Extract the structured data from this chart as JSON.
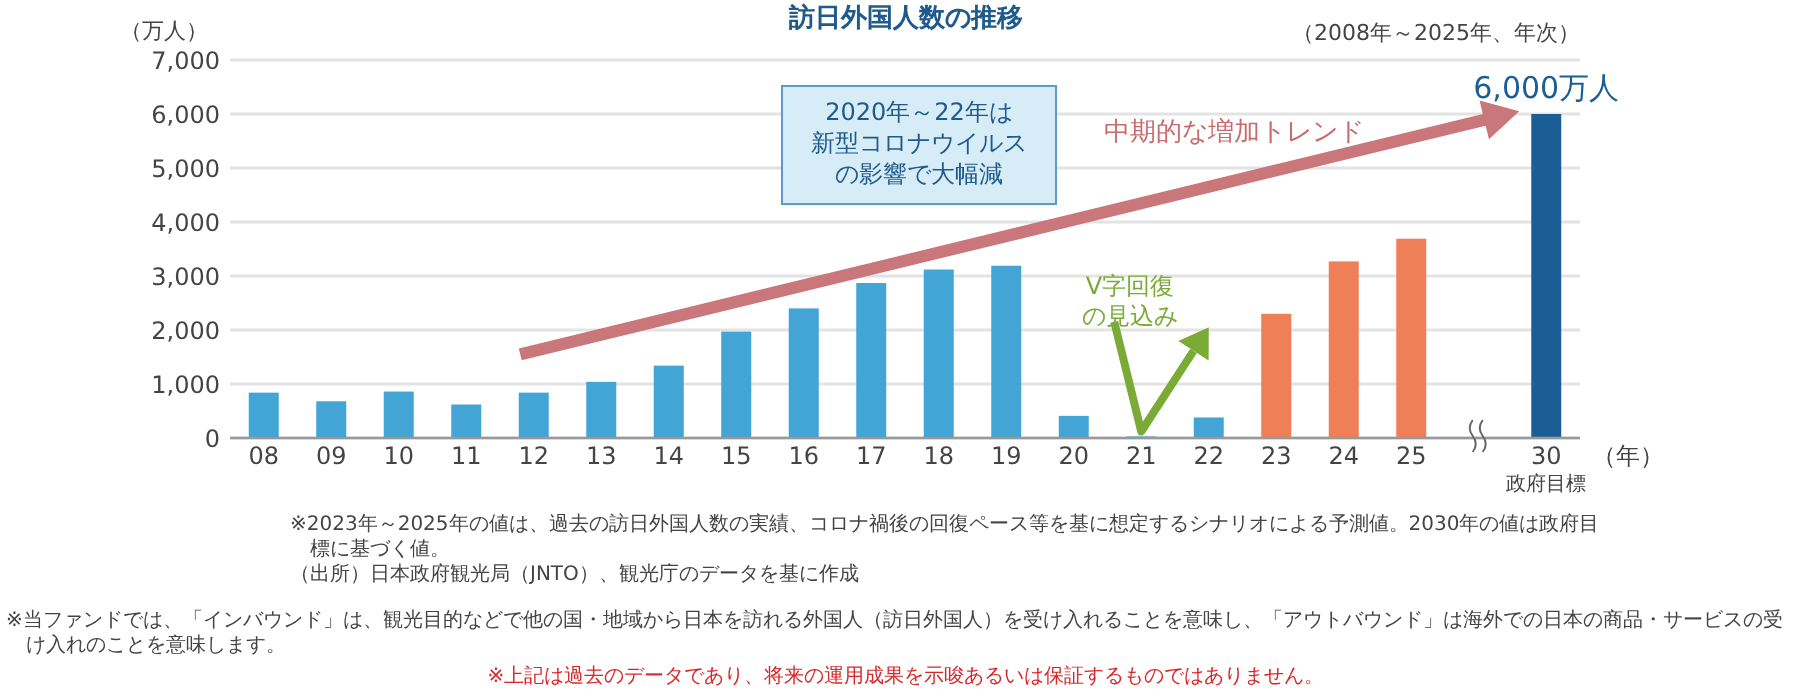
{
  "chart_data": {
    "type": "bar",
    "title": "訪日外国人数の推移",
    "subtitle": "（2008年～2025年、年次）",
    "ylabel": "（万人）",
    "xlabel": "（年）",
    "categories": [
      "08",
      "09",
      "10",
      "11",
      "12",
      "13",
      "14",
      "15",
      "16",
      "17",
      "18",
      "19",
      "20",
      "21",
      "22",
      "23",
      "24",
      "25",
      null,
      "30"
    ],
    "values": [
      840,
      680,
      860,
      620,
      840,
      1040,
      1340,
      1970,
      2400,
      2870,
      3120,
      3190,
      410,
      30,
      380,
      2300,
      3270,
      3690,
      null,
      6000
    ],
    "colors": [
      "#42a5d6",
      "#42a5d6",
      "#42a5d6",
      "#42a5d6",
      "#42a5d6",
      "#42a5d6",
      "#42a5d6",
      "#42a5d6",
      "#42a5d6",
      "#42a5d6",
      "#42a5d6",
      "#42a5d6",
      "#42a5d6",
      "#42a5d6",
      "#42a5d6",
      "#ef7f56",
      "#ef7f56",
      "#ef7f56",
      null,
      "#1b5e96"
    ],
    "value_labels": [
      null,
      null,
      null,
      null,
      null,
      null,
      null,
      null,
      null,
      null,
      null,
      null,
      null,
      null,
      null,
      null,
      null,
      null,
      null,
      "6,000万人"
    ],
    "ylim": [
      0,
      7000
    ],
    "yticks": [
      0,
      {
        "value": 1000,
        "label": "1,000"
      },
      {
        "value": 2000,
        "label": "2,000"
      },
      {
        "value": 3000,
        "label": "3,000"
      },
      {
        "value": 4000,
        "label": "4,000"
      },
      {
        "value": 5000,
        "label": "5,000"
      },
      {
        "value": 6000,
        "label": "6,000"
      },
      {
        "value": 7000,
        "label": "7,000"
      }
    ],
    "grid": "y",
    "annotations": [
      "2020年～22年は新型コロナウイルスの影響で大幅減",
      "中期的な増加トレンド",
      "V字回復の見込み",
      "政府目標",
      "※2023年～2025年の値は、過去の訪日外国人数の実績、コロナ禍後の回復ペース等を基に想定するシナリオによる予測値。2030年の値は政府目標に基づく値。",
      "（出所）日本政府観光局（JNTO）、観光庁のデータを基に作成",
      "※当ファンドでは、「インバウンド」は、観光目的などで他の国・地域から日本を訪れる外国人（訪日外国人）を受け入れることを意味し、「アウトバウンド」は海外での日本の商品・サービスの受け入れのことを意味します。",
      "※上記は過去のデータであり、将来の運用成果を示唆あるいは保証するものではありません。"
    ]
  }
}
